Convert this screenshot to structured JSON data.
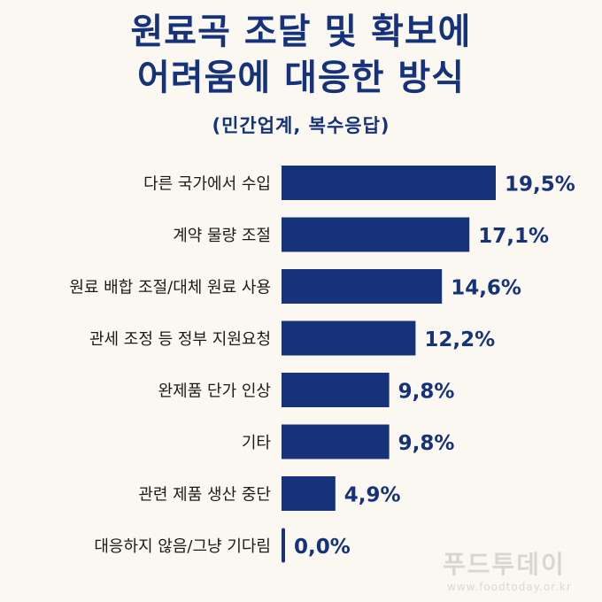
{
  "header": {
    "title_line1": "원료곡 조달 및 확보에",
    "title_line2": "어려움에 대응한 방식",
    "subtitle": "(민간업계, 복수응답)"
  },
  "watermark": {
    "text": "푸드투데이",
    "url": "www.foodtoday.or.kr"
  },
  "colors": {
    "bar": "#15327a",
    "text": "#1a1a1a",
    "value": "#15327a",
    "background": "#fbf8f2"
  },
  "chart_data": {
    "type": "bar",
    "orientation": "horizontal",
    "categories": [
      "다른 국가에서 수입",
      "계약 물량 조절",
      "원료 배합 조절/대체 원료 사용",
      "관세 조정 등 정부 지원요청",
      "완제품 단가 인상",
      "기타",
      "관련 제품 생산 중단",
      "대응하지 않음/그냥 기다림"
    ],
    "values": [
      19.5,
      17.1,
      14.6,
      12.2,
      9.8,
      9.8,
      4.9,
      0.0
    ],
    "value_labels": [
      "19,5%",
      "17,1%",
      "14,6%",
      "12,2%",
      "9,8%",
      "9,8%",
      "4,9%",
      "0,0%"
    ],
    "xlim": [
      0,
      19.5
    ],
    "grid": false,
    "legend": "none"
  }
}
